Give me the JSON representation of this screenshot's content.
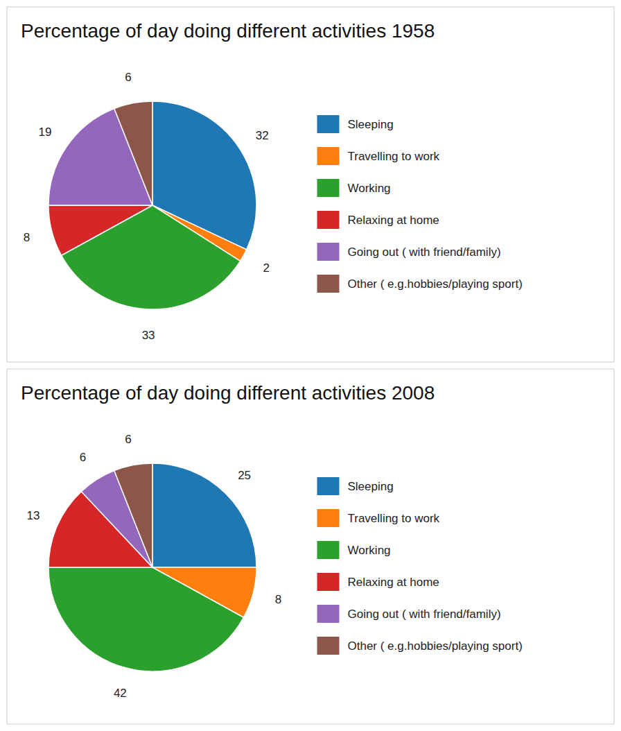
{
  "chart_data": [
    {
      "type": "pie",
      "title": "Percentage of day doing different activities 1958",
      "categories": [
        "Sleeping",
        "Travelling to work",
        "Working",
        "Relaxing at home",
        "Going out ( with friend/family)",
        "Other ( e.g.hobbies/playing sport)"
      ],
      "values": [
        32,
        2,
        33,
        8,
        19,
        6
      ],
      "data_labels": true,
      "legend": "right"
    },
    {
      "type": "pie",
      "title": "Percentage of day doing different activities 2008",
      "categories": [
        "Sleeping",
        "Travelling to work",
        "Working",
        "Relaxing at home",
        "Going out ( with friend/family)",
        "Other ( e.g.hobbies/playing sport)"
      ],
      "values": [
        25,
        8,
        42,
        13,
        6,
        6
      ],
      "data_labels": true,
      "legend": "right"
    }
  ]
}
